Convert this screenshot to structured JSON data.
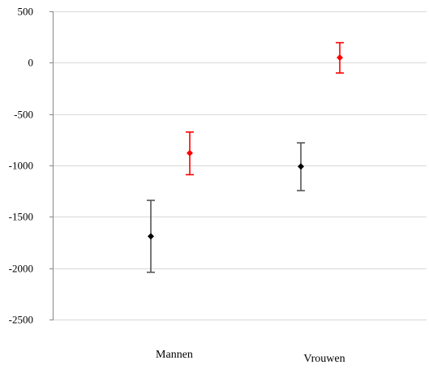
{
  "chart_data": {
    "type": "scatter",
    "title": "",
    "xlabel": "",
    "ylabel": "",
    "categories": [
      "Mannen",
      "Vrouwen"
    ],
    "ylim": [
      -2500,
      500
    ],
    "yticks": [
      500,
      0,
      -500,
      -1000,
      -1500,
      -2000,
      -2500
    ],
    "ytick_labels": [
      "500",
      "0",
      "-500",
      "-1000",
      "-1500",
      "-2000",
      "-2500"
    ],
    "grid": true,
    "legend": "none",
    "series": [
      {
        "color": "#000000",
        "errorbar_color": "#555555",
        "values": [
          -1690,
          -1010
        ],
        "lower": [
          -2040,
          -1245
        ],
        "upper": [
          -1340,
          -780
        ]
      },
      {
        "color": "#ff0000",
        "errorbar_color": "#ff0000",
        "values": [
          -880,
          50
        ],
        "lower": [
          -1090,
          -100
        ],
        "upper": [
          -675,
          195
        ]
      }
    ]
  }
}
